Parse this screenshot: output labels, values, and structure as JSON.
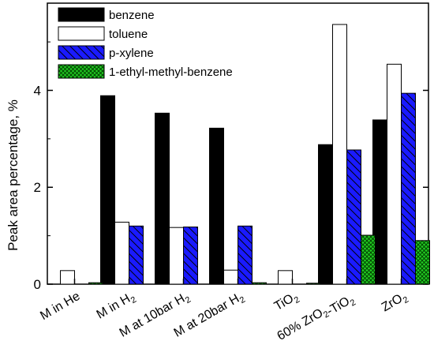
{
  "chart_data": {
    "type": "bar",
    "title": "",
    "xlabel": "",
    "ylabel": "Peak area percentage, %",
    "ylim": [
      0,
      5.8
    ],
    "yticks": [
      0,
      2,
      4
    ],
    "categories": [
      {
        "text": "M in He",
        "sub": ""
      },
      {
        "text": "M in H",
        "sub": "2"
      },
      {
        "text": "M at 10bar H",
        "sub": "2"
      },
      {
        "text": "M at 20bar H",
        "sub": "2"
      },
      {
        "text": "TiO",
        "sub": "2"
      },
      {
        "parts": [
          [
            "60% ZrO",
            ""
          ],
          [
            "2",
            "sub"
          ],
          [
            "-TiO",
            ""
          ],
          [
            "2",
            "sub"
          ]
        ]
      },
      {
        "text": "ZrO",
        "sub": "2"
      }
    ],
    "series": [
      {
        "name": "benzene",
        "values": [
          0,
          3.89,
          3.53,
          3.22,
          0,
          2.88,
          3.39
        ],
        "fill": "#000000",
        "pattern": "solid"
      },
      {
        "name": "toluene",
        "values": [
          0.28,
          1.28,
          1.17,
          0.29,
          0.28,
          5.36,
          4.54
        ],
        "fill": "#ffffff",
        "pattern": "none"
      },
      {
        "name": "p-xylene",
        "values": [
          0,
          1.2,
          1.18,
          1.2,
          0,
          2.77,
          3.94
        ],
        "fill": "#1a1aff",
        "pattern": "hatch"
      },
      {
        "name": "1-ethyl-methyl-benzene",
        "values": [
          0.03,
          0,
          0,
          0.03,
          0.02,
          1.01,
          0.9
        ],
        "fill": "#22cc22",
        "pattern": "cross"
      }
    ],
    "legend_position": "top-left",
    "grid": false
  }
}
